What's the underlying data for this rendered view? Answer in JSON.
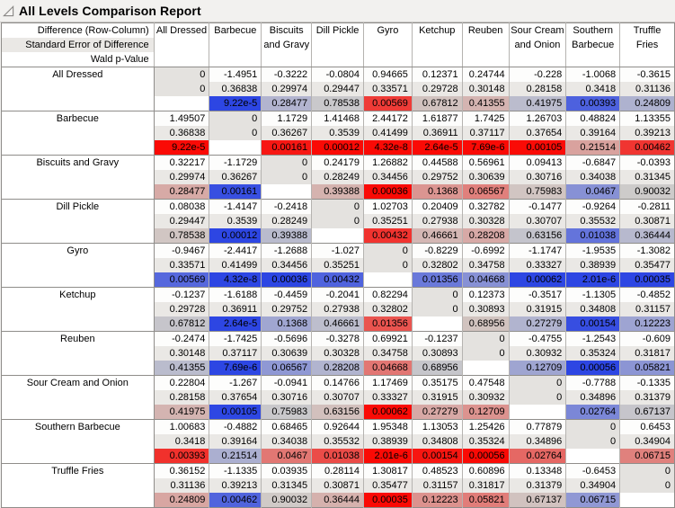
{
  "title": "All Levels Comparison Report",
  "corner_lines": [
    "Difference (Row-Column)",
    "Standard Error of Difference",
    "Wald p-Value"
  ],
  "levels": [
    "All Dressed",
    "Barbecue",
    "Biscuits and Gravy",
    "Dill Pickle",
    "Gyro",
    "Ketchup",
    "Reuben",
    "Sour Cream and Onion",
    "Southern Barbecue",
    "Truffle Fries"
  ],
  "colors": {
    "significant_positive_red": "#fa0a05",
    "significant_negative_blue": "#2d46e3",
    "pvalue_neutral": "#cfcdca",
    "se_row_bg": "#eae8e5",
    "diagonal_bg": "#e4e2df",
    "grid_minor": "#b5b3b0",
    "grid_major": "#8f8d8a"
  },
  "chart_data": {
    "type": "heatmap",
    "note": "Wald p-value cells are tinted red when the row-column difference is positive, blue when negative; saturation increases as p decreases."
  },
  "rows": [
    {
      "level": "All Dressed",
      "diff": [
        "0",
        "-1.4951",
        "-0.3222",
        "-0.0804",
        "0.94665",
        "0.12371",
        "0.24744",
        "-0.228",
        "-1.0068",
        "-0.3615"
      ],
      "se": [
        "0",
        "0.36838",
        "0.29974",
        "0.29447",
        "0.33571",
        "0.29728",
        "0.30148",
        "0.28158",
        "0.3418",
        "0.31136"
      ],
      "p": [
        "",
        "9.22e-5",
        "0.28477",
        "0.78538",
        "0.00569",
        "0.67812",
        "0.41355",
        "0.41975",
        "0.00393",
        "0.24809"
      ]
    },
    {
      "level": "Barbecue",
      "diff": [
        "1.49507",
        "0",
        "1.1729",
        "1.41468",
        "2.44172",
        "1.61877",
        "1.7425",
        "1.26703",
        "0.48824",
        "1.13355"
      ],
      "se": [
        "0.36838",
        "0",
        "0.36267",
        "0.3539",
        "0.41499",
        "0.36911",
        "0.37117",
        "0.37654",
        "0.39164",
        "0.39213"
      ],
      "p": [
        "9.22e-5",
        "",
        "0.00161",
        "0.00012",
        "4.32e-8",
        "2.64e-5",
        "7.69e-6",
        "0.00105",
        "0.21514",
        "0.00462"
      ]
    },
    {
      "level": "Biscuits and Gravy",
      "diff": [
        "0.32217",
        "-1.1729",
        "0",
        "0.24179",
        "1.26882",
        "0.44588",
        "0.56961",
        "0.09413",
        "-0.6847",
        "-0.0393"
      ],
      "se": [
        "0.29974",
        "0.36267",
        "0",
        "0.28249",
        "0.34456",
        "0.29752",
        "0.30639",
        "0.30716",
        "0.34038",
        "0.31345"
      ],
      "p": [
        "0.28477",
        "0.00161",
        "",
        "0.39388",
        "0.00036",
        "0.1368",
        "0.06567",
        "0.75983",
        "0.0467",
        "0.90032"
      ]
    },
    {
      "level": "Dill Pickle",
      "diff": [
        "0.08038",
        "-1.4147",
        "-0.2418",
        "0",
        "1.02703",
        "0.20409",
        "0.32782",
        "-0.1477",
        "-0.9264",
        "-0.2811"
      ],
      "se": [
        "0.29447",
        "0.3539",
        "0.28249",
        "0",
        "0.35251",
        "0.27938",
        "0.30328",
        "0.30707",
        "0.35532",
        "0.30871"
      ],
      "p": [
        "0.78538",
        "0.00012",
        "0.39388",
        "",
        "0.00432",
        "0.46661",
        "0.28208",
        "0.63156",
        "0.01038",
        "0.36444"
      ]
    },
    {
      "level": "Gyro",
      "diff": [
        "-0.9467",
        "-2.4417",
        "-1.2688",
        "-1.027",
        "0",
        "-0.8229",
        "-0.6992",
        "-1.1747",
        "-1.9535",
        "-1.3082"
      ],
      "se": [
        "0.33571",
        "0.41499",
        "0.34456",
        "0.35251",
        "0",
        "0.32802",
        "0.34758",
        "0.33327",
        "0.38939",
        "0.35477"
      ],
      "p": [
        "0.00569",
        "4.32e-8",
        "0.00036",
        "0.00432",
        "",
        "0.01356",
        "0.04668",
        "0.00062",
        "2.01e-6",
        "0.00035"
      ]
    },
    {
      "level": "Ketchup",
      "diff": [
        "-0.1237",
        "-1.6188",
        "-0.4459",
        "-0.2041",
        "0.82294",
        "0",
        "0.12373",
        "-0.3517",
        "-1.1305",
        "-0.4852"
      ],
      "se": [
        "0.29728",
        "0.36911",
        "0.29752",
        "0.27938",
        "0.32802",
        "0",
        "0.30893",
        "0.31915",
        "0.34808",
        "0.31157"
      ],
      "p": [
        "0.67812",
        "2.64e-5",
        "0.1368",
        "0.46661",
        "0.01356",
        "",
        "0.68956",
        "0.27279",
        "0.00154",
        "0.12223"
      ]
    },
    {
      "level": "Reuben",
      "diff": [
        "-0.2474",
        "-1.7425",
        "-0.5696",
        "-0.3278",
        "0.69921",
        "-0.1237",
        "0",
        "-0.4755",
        "-1.2543",
        "-0.609"
      ],
      "se": [
        "0.30148",
        "0.37117",
        "0.30639",
        "0.30328",
        "0.34758",
        "0.30893",
        "0",
        "0.30932",
        "0.35324",
        "0.31817"
      ],
      "p": [
        "0.41355",
        "7.69e-6",
        "0.06567",
        "0.28208",
        "0.04668",
        "0.68956",
        "",
        "0.12709",
        "0.00056",
        "0.05821"
      ]
    },
    {
      "level": "Sour Cream and Onion",
      "diff": [
        "0.22804",
        "-1.267",
        "-0.0941",
        "0.14766",
        "1.17469",
        "0.35175",
        "0.47548",
        "0",
        "-0.7788",
        "-0.1335"
      ],
      "se": [
        "0.28158",
        "0.37654",
        "0.30716",
        "0.30707",
        "0.33327",
        "0.31915",
        "0.30932",
        "0",
        "0.34896",
        "0.31379"
      ],
      "p": [
        "0.41975",
        "0.00105",
        "0.75983",
        "0.63156",
        "0.00062",
        "0.27279",
        "0.12709",
        "",
        "0.02764",
        "0.67137"
      ]
    },
    {
      "level": "Southern Barbecue",
      "diff": [
        "1.00683",
        "-0.4882",
        "0.68465",
        "0.92644",
        "1.95348",
        "1.13053",
        "1.25426",
        "0.77879",
        "0",
        "0.6453"
      ],
      "se": [
        "0.3418",
        "0.39164",
        "0.34038",
        "0.35532",
        "0.38939",
        "0.34808",
        "0.35324",
        "0.34896",
        "0",
        "0.34904"
      ],
      "p": [
        "0.00393",
        "0.21514",
        "0.0467",
        "0.01038",
        "2.01e-6",
        "0.00154",
        "0.00056",
        "0.02764",
        "",
        "0.06715"
      ]
    },
    {
      "level": "Truffle Fries",
      "diff": [
        "0.36152",
        "-1.1335",
        "0.03935",
        "0.28114",
        "1.30817",
        "0.48523",
        "0.60896",
        "0.13348",
        "-0.6453",
        "0"
      ],
      "se": [
        "0.31136",
        "0.39213",
        "0.31345",
        "0.30871",
        "0.35477",
        "0.31157",
        "0.31817",
        "0.31379",
        "0.34904",
        "0"
      ],
      "p": [
        "0.24809",
        "0.00462",
        "0.90032",
        "0.36444",
        "0.00035",
        "0.12223",
        "0.05821",
        "0.67137",
        "0.06715",
        ""
      ]
    }
  ]
}
